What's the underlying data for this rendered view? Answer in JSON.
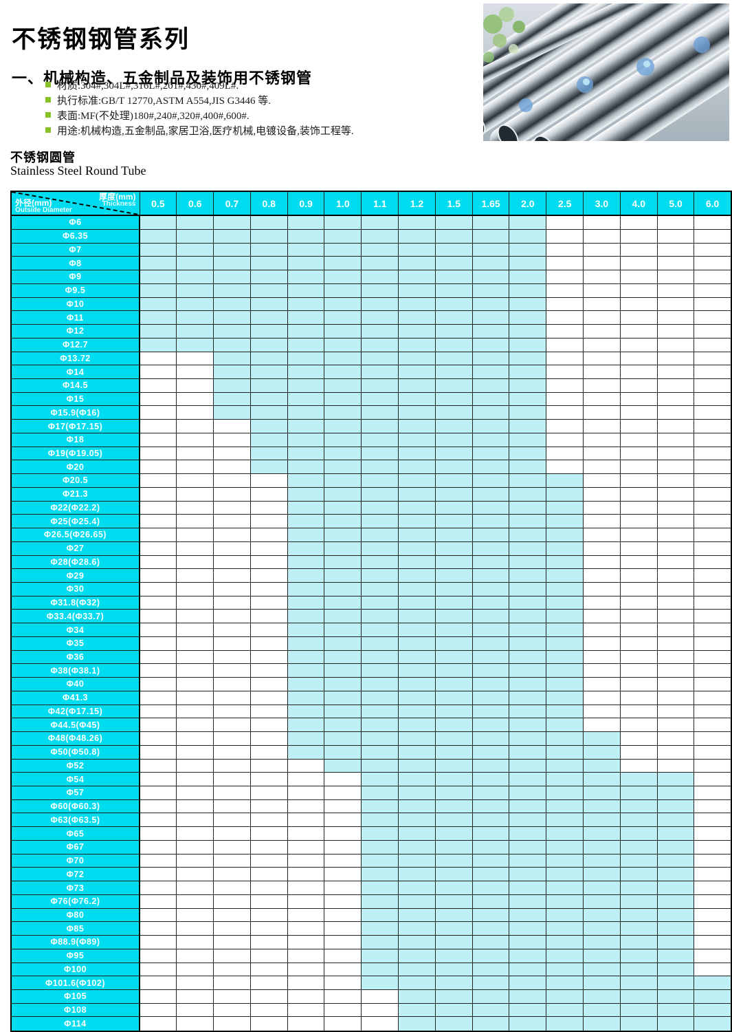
{
  "page": {
    "title": "不锈钢钢管系列",
    "section_heading": "一、机械构造、五金制品及装饰用不锈钢管",
    "bullets": [
      "材质:304#,304L#,316L#,201#,430#,409L#.",
      "执行标准:GB/T 12770,ASTM A554,JIS G3446 等.",
      "表面:MF(不处理)180#,240#,320#,400#,600#.",
      "用途:机械构造,五金制品,家居卫浴,医疗机械,电镀设备,装饰工程等."
    ],
    "table_title_zh": "不锈钢圆管",
    "table_title_en": "Stainless Steel Round Tube"
  },
  "colors": {
    "header_cyan": "#00dcef",
    "cell_cyan": "#bff0f6",
    "bullet_green": "#86c226"
  },
  "table": {
    "corner": {
      "thickness_zh": "厚度(mm)",
      "thickness_en": "Thickness",
      "diameter_zh": "外径(mm)",
      "diameter_en": "Outside Diameter"
    },
    "columns": [
      "0.5",
      "0.6",
      "0.7",
      "0.8",
      "0.9",
      "1.0",
      "1.1",
      "1.2",
      "1.5",
      "1.65",
      "2.0",
      "2.5",
      "3.0",
      "4.0",
      "5.0",
      "6.0"
    ],
    "rows": [
      {
        "label": "Φ6",
        "from": 0,
        "to": 10
      },
      {
        "label": "Φ6.35",
        "from": 0,
        "to": 10
      },
      {
        "label": "Φ7",
        "from": 0,
        "to": 10
      },
      {
        "label": "Φ8",
        "from": 0,
        "to": 10
      },
      {
        "label": "Φ9",
        "from": 0,
        "to": 10
      },
      {
        "label": "Φ9.5",
        "from": 0,
        "to": 10
      },
      {
        "label": "Φ10",
        "from": 0,
        "to": 10
      },
      {
        "label": "Φ11",
        "from": 0,
        "to": 10
      },
      {
        "label": "Φ12",
        "from": 0,
        "to": 10
      },
      {
        "label": "Φ12.7",
        "from": 0,
        "to": 10
      },
      {
        "label": "Φ13.72",
        "from": 2,
        "to": 10
      },
      {
        "label": "Φ14",
        "from": 2,
        "to": 10
      },
      {
        "label": "Φ14.5",
        "from": 2,
        "to": 10
      },
      {
        "label": "Φ15",
        "from": 2,
        "to": 10
      },
      {
        "label": "Φ15.9(Φ16)",
        "from": 2,
        "to": 10
      },
      {
        "label": "Φ17(Φ17.15)",
        "from": 3,
        "to": 10
      },
      {
        "label": "Φ18",
        "from": 3,
        "to": 10
      },
      {
        "label": "Φ19(Φ19.05)",
        "from": 3,
        "to": 10
      },
      {
        "label": "Φ20",
        "from": 3,
        "to": 10
      },
      {
        "label": "Φ20.5",
        "from": 4,
        "to": 11
      },
      {
        "label": "Φ21.3",
        "from": 4,
        "to": 11
      },
      {
        "label": "Φ22(Φ22.2)",
        "from": 4,
        "to": 11
      },
      {
        "label": "Φ25(Φ25.4)",
        "from": 4,
        "to": 11
      },
      {
        "label": "Φ26.5(Φ26.65)",
        "from": 4,
        "to": 11
      },
      {
        "label": "Φ27",
        "from": 4,
        "to": 11
      },
      {
        "label": "Φ28(Φ28.6)",
        "from": 4,
        "to": 11
      },
      {
        "label": "Φ29",
        "from": 4,
        "to": 11
      },
      {
        "label": "Φ30",
        "from": 4,
        "to": 11
      },
      {
        "label": "Φ31.8(Φ32)",
        "from": 4,
        "to": 11
      },
      {
        "label": "Φ33.4(Φ33.7)",
        "from": 4,
        "to": 11
      },
      {
        "label": "Φ34",
        "from": 4,
        "to": 11
      },
      {
        "label": "Φ35",
        "from": 4,
        "to": 11
      },
      {
        "label": "Φ36",
        "from": 4,
        "to": 11
      },
      {
        "label": "Φ38(Φ38.1)",
        "from": 4,
        "to": 11
      },
      {
        "label": "Φ40",
        "from": 4,
        "to": 11
      },
      {
        "label": "Φ41.3",
        "from": 4,
        "to": 11
      },
      {
        "label": "Φ42(Φ17.15)",
        "from": 4,
        "to": 11
      },
      {
        "label": "Φ44.5(Φ45)",
        "from": 4,
        "to": 11
      },
      {
        "label": "Φ48(Φ48.26)",
        "from": 4,
        "to": 12
      },
      {
        "label": "Φ50(Φ50.8)",
        "from": 4,
        "to": 12
      },
      {
        "label": "Φ52",
        "from": 5,
        "to": 12
      },
      {
        "label": "Φ54",
        "from": 6,
        "to": 14
      },
      {
        "label": "Φ57",
        "from": 6,
        "to": 14
      },
      {
        "label": "Φ60(Φ60.3)",
        "from": 6,
        "to": 14
      },
      {
        "label": "Φ63(Φ63.5)",
        "from": 6,
        "to": 14
      },
      {
        "label": "Φ65",
        "from": 6,
        "to": 14
      },
      {
        "label": "Φ67",
        "from": 6,
        "to": 14
      },
      {
        "label": "Φ70",
        "from": 6,
        "to": 14
      },
      {
        "label": "Φ72",
        "from": 6,
        "to": 14
      },
      {
        "label": "Φ73",
        "from": 6,
        "to": 14
      },
      {
        "label": "Φ76(Φ76.2)",
        "from": 6,
        "to": 14
      },
      {
        "label": "Φ80",
        "from": 6,
        "to": 14
      },
      {
        "label": "Φ85",
        "from": 6,
        "to": 14
      },
      {
        "label": "Φ88.9(Φ89)",
        "from": 6,
        "to": 14
      },
      {
        "label": "Φ95",
        "from": 6,
        "to": 14
      },
      {
        "label": "Φ100",
        "from": 6,
        "to": 14
      },
      {
        "label": "Φ101.6(Φ102)",
        "from": 6,
        "to": 15
      },
      {
        "label": "Φ105",
        "from": 7,
        "to": 15
      },
      {
        "label": "Φ108",
        "from": 7,
        "to": 15
      },
      {
        "label": "Φ114",
        "from": 7,
        "to": 15
      }
    ]
  }
}
